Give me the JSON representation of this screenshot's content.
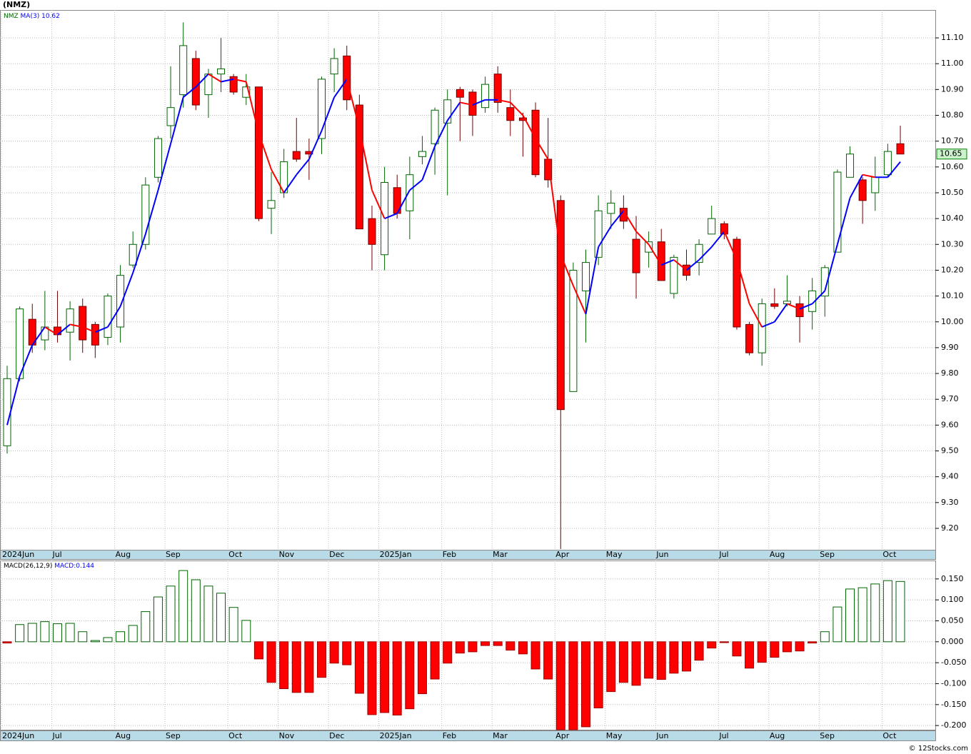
{
  "chart_data": [
    {
      "type": "candlestick",
      "title": "(NMZ)",
      "symbol": "NMZ",
      "categories": [
        "2024Jun",
        null,
        null,
        null,
        "Jul",
        null,
        null,
        null,
        null,
        "Aug",
        null,
        null,
        null,
        "Sep",
        null,
        null,
        null,
        null,
        "Oct",
        null,
        null,
        null,
        "Nov",
        null,
        null,
        null,
        "Dec",
        null,
        null,
        null,
        "2025Jan",
        null,
        null,
        null,
        null,
        "Feb",
        null,
        null,
        null,
        "Mar",
        null,
        null,
        null,
        null,
        "Apr",
        null,
        null,
        null,
        "May",
        null,
        null,
        null,
        "Jun",
        null,
        null,
        null,
        null,
        "Jul",
        null,
        null,
        null,
        "Aug",
        null,
        null,
        null,
        "Sep",
        null,
        null,
        null,
        null,
        "Oct",
        null
      ],
      "open": [
        9.52,
        9.78,
        10.01,
        9.93,
        9.98,
        9.96,
        10.06,
        9.99,
        9.94,
        9.98,
        10.22,
        10.3,
        10.56,
        10.76,
        10.88,
        11.02,
        10.88,
        10.96,
        10.95,
        10.87,
        10.91,
        10.44,
        10.5,
        10.66,
        10.66,
        10.71,
        10.96,
        11.03,
        10.84,
        10.4,
        10.26,
        10.52,
        10.43,
        10.64,
        10.69,
        10.77,
        10.9,
        10.89,
        10.83,
        10.96,
        10.83,
        10.79,
        10.82,
        10.63,
        10.47,
        9.73,
        10.12,
        10.25,
        10.42,
        10.44,
        10.32,
        10.27,
        10.31,
        10.11,
        10.22,
        10.23,
        10.34,
        10.38,
        10.32,
        9.99,
        9.88,
        10.07,
        10.07,
        10.07,
        10.04,
        10.1,
        10.27,
        10.56,
        10.55,
        10.5,
        10.57,
        10.69
      ],
      "high": [
        9.83,
        10.06,
        10.07,
        10.12,
        10.12,
        10.08,
        10.09,
        10.0,
        10.11,
        10.22,
        10.35,
        10.56,
        10.72,
        10.99,
        11.16,
        11.05,
        10.98,
        11.1,
        10.96,
        10.96,
        10.91,
        10.58,
        10.67,
        10.79,
        10.71,
        10.95,
        11.06,
        11.07,
        10.88,
        10.45,
        10.6,
        10.57,
        10.64,
        10.72,
        10.83,
        10.9,
        10.91,
        10.9,
        10.95,
        10.99,
        10.9,
        10.81,
        10.85,
        10.79,
        10.49,
        10.23,
        10.28,
        10.49,
        10.51,
        10.49,
        10.41,
        10.35,
        10.36,
        10.26,
        10.28,
        10.32,
        10.45,
        10.39,
        10.33,
        10.0,
        10.09,
        10.13,
        10.18,
        10.1,
        10.17,
        10.22,
        10.59,
        10.68,
        10.56,
        10.64,
        10.69,
        10.76
      ],
      "low": [
        9.49,
        9.77,
        9.88,
        9.89,
        9.92,
        9.85,
        9.88,
        9.86,
        9.91,
        9.92,
        10.21,
        10.28,
        10.54,
        10.71,
        10.83,
        10.82,
        10.79,
        10.89,
        10.88,
        10.84,
        10.39,
        10.34,
        10.48,
        10.62,
        10.55,
        10.65,
        10.89,
        10.82,
        10.36,
        10.2,
        10.2,
        10.4,
        10.32,
        10.61,
        10.57,
        10.49,
        10.7,
        10.72,
        10.81,
        10.81,
        10.72,
        10.64,
        10.56,
        10.52,
        9.12,
        9.73,
        9.92,
        10.22,
        10.36,
        10.36,
        10.09,
        10.21,
        10.16,
        10.09,
        10.16,
        10.18,
        10.34,
        10.32,
        9.97,
        9.87,
        9.83,
        10.05,
        10.06,
        9.92,
        9.97,
        10.02,
        10.27,
        10.56,
        10.38,
        10.43,
        10.56,
        10.65
      ],
      "close": [
        9.78,
        10.05,
        9.91,
        9.98,
        9.95,
        10.05,
        9.93,
        9.91,
        10.1,
        10.18,
        10.3,
        10.53,
        10.71,
        10.83,
        11.07,
        10.84,
        10.96,
        10.98,
        10.89,
        10.91,
        10.4,
        10.47,
        10.62,
        10.63,
        10.65,
        10.94,
        11.02,
        10.86,
        10.36,
        10.3,
        10.54,
        10.42,
        10.57,
        10.66,
        10.82,
        10.86,
        10.87,
        10.8,
        10.92,
        10.85,
        10.78,
        10.78,
        10.57,
        10.55,
        9.66,
        10.2,
        10.23,
        10.43,
        10.46,
        10.39,
        10.19,
        10.31,
        10.16,
        10.25,
        10.18,
        10.3,
        10.4,
        10.34,
        9.98,
        9.88,
        10.07,
        10.06,
        10.08,
        10.02,
        10.12,
        10.21,
        10.58,
        10.65,
        10.47,
        10.56,
        10.66,
        10.65
      ],
      "up_color": "#006400",
      "down_color": "#ff0000",
      "ma": {
        "name": "MA(3)",
        "up_color": "#0000ff",
        "down_color": "#ff0000",
        "values": [
          9.6,
          9.79,
          9.91,
          9.98,
          9.95,
          9.99,
          9.98,
          9.96,
          9.98,
          10.06,
          10.19,
          10.34,
          10.51,
          10.69,
          10.87,
          10.91,
          10.96,
          10.93,
          10.94,
          10.93,
          10.73,
          10.59,
          10.5,
          10.57,
          10.63,
          10.74,
          10.87,
          10.94,
          10.75,
          10.51,
          10.4,
          10.42,
          10.51,
          10.55,
          10.68,
          10.78,
          10.85,
          10.84,
          10.86,
          10.86,
          10.85,
          10.8,
          10.71,
          10.63,
          10.26,
          10.14,
          10.03,
          10.29,
          10.37,
          10.43,
          10.35,
          10.3,
          10.22,
          10.24,
          10.2,
          10.24,
          10.29,
          10.35,
          10.24,
          10.07,
          9.98,
          10.0,
          10.07,
          10.05,
          10.07,
          10.12,
          10.3,
          10.48,
          10.57,
          10.56,
          10.56,
          10.62
        ]
      },
      "ylim": [
        9.117,
        11.208
      ],
      "yticks": [
        {
          "value": 9.2,
          "label": "9.20"
        },
        {
          "value": 9.3,
          "label": "9.30"
        },
        {
          "value": 9.4,
          "label": "9.40"
        },
        {
          "value": 9.5,
          "label": "9.50"
        },
        {
          "value": 9.6,
          "label": "9.60"
        },
        {
          "value": 9.7,
          "label": "9.70"
        },
        {
          "value": 9.8,
          "label": "9.80"
        },
        {
          "value": 9.9,
          "label": "9.90"
        },
        {
          "value": 10,
          "label": "10.00"
        },
        {
          "value": 10.1,
          "label": "10.10"
        },
        {
          "value": 10.2,
          "label": "10.20"
        },
        {
          "value": 10.3,
          "label": "10.30"
        },
        {
          "value": 10.4,
          "label": "10.40"
        },
        {
          "value": 10.5,
          "label": "10.50"
        },
        {
          "value": 10.6,
          "label": "10.60"
        },
        {
          "value": 10.7,
          "label": "10.70"
        },
        {
          "value": 10.8,
          "label": "10.80"
        },
        {
          "value": 10.9,
          "label": "10.90"
        },
        {
          "value": 11,
          "label": "11.00"
        },
        {
          "value": 11.1,
          "label": "11.10"
        }
      ],
      "grid": true
    },
    {
      "type": "bar",
      "title": "MACD(26,12,9)",
      "value_prefix": "MACD:",
      "categories": [
        "2024Jun",
        null,
        null,
        null,
        "Jul",
        null,
        null,
        null,
        null,
        "Aug",
        null,
        null,
        null,
        "Sep",
        null,
        null,
        null,
        null,
        "Oct",
        null,
        null,
        null,
        "Nov",
        null,
        null,
        null,
        "Dec",
        null,
        null,
        null,
        "2025Jan",
        null,
        null,
        null,
        null,
        "Feb",
        null,
        null,
        null,
        "Mar",
        null,
        null,
        null,
        null,
        "Apr",
        null,
        null,
        null,
        "May",
        null,
        null,
        null,
        "Jun",
        null,
        null,
        null,
        null,
        "Jul",
        null,
        null,
        null,
        "Aug",
        null,
        null,
        null,
        "Sep",
        null,
        null,
        null,
        null,
        "Oct",
        null
      ],
      "values": [
        -0.003,
        0.041,
        0.044,
        0.048,
        0.043,
        0.044,
        0.024,
        0.003,
        0.01,
        0.024,
        0.039,
        0.072,
        0.107,
        0.133,
        0.17,
        0.148,
        0.133,
        0.116,
        0.082,
        0.051,
        -0.041,
        -0.097,
        -0.112,
        -0.121,
        -0.121,
        -0.085,
        -0.051,
        -0.055,
        -0.123,
        -0.174,
        -0.169,
        -0.175,
        -0.16,
        -0.124,
        -0.089,
        -0.051,
        -0.027,
        -0.024,
        -0.009,
        -0.009,
        -0.02,
        -0.029,
        -0.065,
        -0.089,
        -0.21,
        -0.21,
        -0.203,
        -0.158,
        -0.119,
        -0.097,
        -0.104,
        -0.087,
        -0.09,
        -0.075,
        -0.07,
        -0.044,
        -0.015,
        -0.002,
        -0.034,
        -0.063,
        -0.049,
        -0.037,
        -0.024,
        -0.022,
        -0.003,
        0.024,
        0.083,
        0.126,
        0.129,
        0.138,
        0.146,
        0.144
      ],
      "up_color": "#006400",
      "down_color": "#ff0000",
      "ylim": [
        -0.21,
        0.194
      ],
      "yticks": [
        {
          "value": -0.2,
          "label": "-0.200"
        },
        {
          "value": -0.15,
          "label": "-0.150"
        },
        {
          "value": -0.1,
          "label": "-0.100"
        },
        {
          "value": -0.05,
          "label": "-0.050"
        },
        {
          "value": 0,
          "label": "0.000"
        },
        {
          "value": 0.05,
          "label": "0.050"
        },
        {
          "value": 0.1,
          "label": "0.100"
        },
        {
          "value": 0.15,
          "label": "0.150"
        }
      ],
      "grid": true
    }
  ],
  "copyright": "© 12Stocks.com"
}
